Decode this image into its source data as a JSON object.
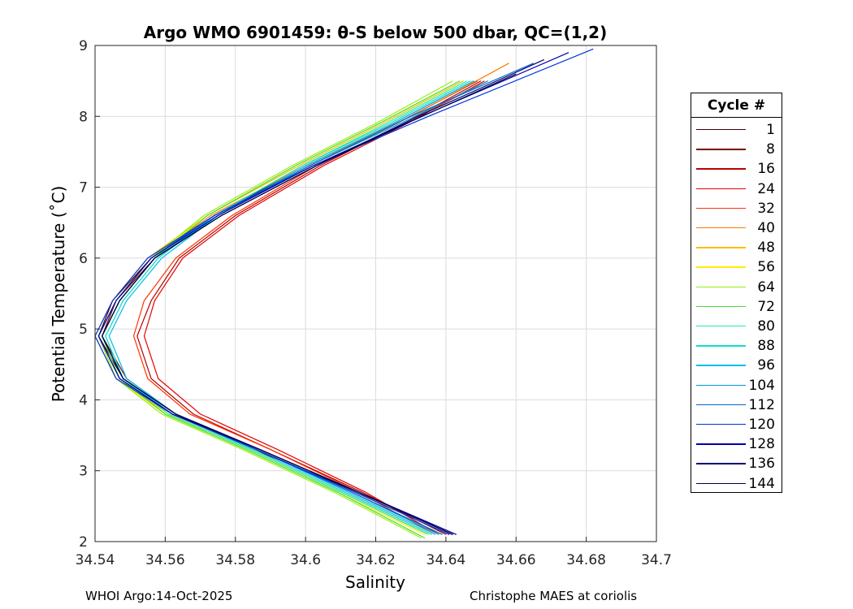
{
  "chart_data": {
    "type": "line",
    "title": "Argo WMO 6901459: θ-S below 500 dbar,  QC=(1,2)",
    "xlabel": "Salinity",
    "ylabel": "Potential Temperature (˚C)",
    "xlim": [
      34.54,
      34.7
    ],
    "ylim": [
      2,
      9
    ],
    "x_ticks": [
      "34.54",
      "34.56",
      "34.58",
      "34.6",
      "34.62",
      "34.64",
      "34.66",
      "34.68",
      "34.7"
    ],
    "y_ticks": [
      "2",
      "3",
      "4",
      "5",
      "6",
      "7",
      "8",
      "9"
    ],
    "grid": true,
    "legend_title": "Cycle #",
    "legend_position": "right",
    "series": [
      {
        "name": "1",
        "color": "#3d0000",
        "x": [
          34.642,
          34.615,
          34.585,
          34.562,
          34.548,
          34.541,
          34.545,
          34.556,
          34.574,
          34.6,
          34.625,
          34.648
        ],
        "y": [
          2.1,
          2.7,
          3.3,
          3.8,
          4.3,
          4.9,
          5.4,
          6.0,
          6.6,
          7.3,
          7.9,
          8.5
        ]
      },
      {
        "name": "8",
        "color": "#7a0000",
        "x": [
          34.641,
          34.614,
          34.586,
          34.563,
          34.549,
          34.542,
          34.546,
          34.557,
          34.575,
          34.601,
          34.626,
          34.649
        ],
        "y": [
          2.1,
          2.7,
          3.3,
          3.8,
          4.3,
          4.9,
          5.4,
          6.0,
          6.6,
          7.3,
          7.9,
          8.5
        ]
      },
      {
        "name": "16",
        "color": "#b80000",
        "x": [
          34.64,
          34.616,
          34.59,
          34.568,
          34.556,
          34.552,
          34.556,
          34.564,
          34.58,
          34.604,
          34.628,
          34.65
        ],
        "y": [
          2.1,
          2.7,
          3.3,
          3.8,
          4.3,
          4.9,
          5.4,
          6.0,
          6.6,
          7.3,
          7.9,
          8.5
        ]
      },
      {
        "name": "24",
        "color": "#e60000",
        "x": [
          34.638,
          34.617,
          34.592,
          34.57,
          34.558,
          34.554,
          34.557,
          34.565,
          34.581,
          34.605,
          34.629,
          34.651
        ],
        "y": [
          2.1,
          2.7,
          3.3,
          3.8,
          4.3,
          4.9,
          5.4,
          6.0,
          6.6,
          7.3,
          7.9,
          8.5
        ]
      },
      {
        "name": "32",
        "color": "#ff3300",
        "x": [
          34.637,
          34.615,
          34.59,
          34.567,
          34.555,
          34.551,
          34.554,
          34.563,
          34.579,
          34.603,
          34.628,
          34.652
        ],
        "y": [
          2.1,
          2.7,
          3.3,
          3.8,
          4.3,
          4.9,
          5.4,
          6.0,
          6.6,
          7.3,
          7.9,
          8.5
        ]
      },
      {
        "name": "40",
        "color": "#ff7700",
        "x": [
          34.636,
          34.611,
          34.585,
          34.562,
          34.547,
          34.541,
          34.546,
          34.556,
          34.573,
          34.6,
          34.63,
          34.658
        ],
        "y": [
          2.1,
          2.7,
          3.3,
          3.8,
          4.3,
          4.9,
          5.4,
          6.0,
          6.6,
          7.3,
          8.0,
          8.75
        ]
      },
      {
        "name": "48",
        "color": "#ffbb00",
        "x": [
          34.635,
          34.61,
          34.584,
          34.561,
          34.546,
          34.54,
          34.545,
          34.555,
          34.572,
          34.598,
          34.622,
          34.645
        ],
        "y": [
          2.1,
          2.7,
          3.3,
          3.8,
          4.3,
          4.9,
          5.4,
          6.0,
          6.6,
          7.3,
          7.9,
          8.5
        ]
      },
      {
        "name": "56",
        "color": "#ffee00",
        "x": [
          34.634,
          34.609,
          34.583,
          34.56,
          34.546,
          34.541,
          34.546,
          34.556,
          34.572,
          34.597,
          34.621,
          34.644
        ],
        "y": [
          2.1,
          2.7,
          3.3,
          3.8,
          4.3,
          4.9,
          5.4,
          6.0,
          6.6,
          7.3,
          7.9,
          8.5
        ]
      },
      {
        "name": "64",
        "color": "#99ee11",
        "x": [
          34.633,
          34.608,
          34.582,
          34.559,
          34.546,
          34.541,
          34.546,
          34.556,
          34.571,
          34.596,
          34.62,
          34.642
        ],
        "y": [
          2.05,
          2.7,
          3.3,
          3.8,
          4.3,
          4.9,
          5.4,
          6.0,
          6.6,
          7.3,
          7.9,
          8.5
        ]
      },
      {
        "name": "72",
        "color": "#44dd33",
        "x": [
          34.634,
          34.609,
          34.583,
          34.56,
          34.547,
          34.542,
          34.547,
          34.557,
          34.572,
          34.597,
          34.621,
          34.644
        ],
        "y": [
          2.05,
          2.7,
          3.3,
          3.8,
          4.3,
          4.9,
          5.4,
          6.0,
          6.6,
          7.3,
          7.9,
          8.5
        ]
      },
      {
        "name": "80",
        "color": "#22ee99",
        "x": [
          34.635,
          34.61,
          34.584,
          34.561,
          34.548,
          34.543,
          34.548,
          34.558,
          34.574,
          34.599,
          34.623,
          34.646
        ],
        "y": [
          2.1,
          2.7,
          3.3,
          3.8,
          4.3,
          4.9,
          5.4,
          6.0,
          6.6,
          7.3,
          7.9,
          8.5
        ]
      },
      {
        "name": "88",
        "color": "#11ddcc",
        "x": [
          34.636,
          34.611,
          34.585,
          34.562,
          34.548,
          34.543,
          34.548,
          34.558,
          34.574,
          34.599,
          34.624,
          34.647
        ],
        "y": [
          2.1,
          2.7,
          3.3,
          3.8,
          4.3,
          4.9,
          5.4,
          6.0,
          6.6,
          7.3,
          7.9,
          8.5
        ]
      },
      {
        "name": "96",
        "color": "#00bbee",
        "x": [
          34.637,
          34.612,
          34.586,
          34.563,
          34.549,
          34.544,
          34.549,
          34.559,
          34.575,
          34.6,
          34.625,
          34.648
        ],
        "y": [
          2.1,
          2.7,
          3.3,
          3.8,
          4.3,
          4.9,
          5.4,
          6.0,
          6.6,
          7.3,
          7.9,
          8.5
        ]
      },
      {
        "name": "104",
        "color": "#0099cc",
        "x": [
          34.638,
          34.613,
          34.586,
          34.563,
          34.548,
          34.542,
          34.547,
          34.557,
          34.575,
          34.601,
          34.627,
          34.652
        ],
        "y": [
          2.1,
          2.7,
          3.3,
          3.8,
          4.3,
          4.9,
          5.4,
          6.0,
          6.6,
          7.3,
          7.9,
          8.5
        ]
      },
      {
        "name": "112",
        "color": "#0066cc",
        "x": [
          34.639,
          34.613,
          34.586,
          34.562,
          34.547,
          34.541,
          34.546,
          34.556,
          34.574,
          34.601,
          34.63,
          34.665
        ],
        "y": [
          2.1,
          2.7,
          3.3,
          3.8,
          4.3,
          4.9,
          5.4,
          6.0,
          6.6,
          7.3,
          8.0,
          8.75
        ]
      },
      {
        "name": "120",
        "color": "#0033dd",
        "x": [
          34.641,
          34.614,
          34.586,
          34.562,
          34.546,
          34.54,
          34.545,
          34.555,
          34.574,
          34.602,
          34.635,
          34.682
        ],
        "y": [
          2.1,
          2.7,
          3.3,
          3.8,
          4.3,
          4.9,
          5.4,
          6.0,
          6.6,
          7.3,
          8.0,
          8.95
        ]
      },
      {
        "name": "128",
        "color": "#0000aa",
        "x": [
          34.643,
          34.615,
          34.587,
          34.562,
          34.547,
          34.541,
          34.546,
          34.556,
          34.575,
          34.602,
          34.633,
          34.675
        ],
        "y": [
          2.1,
          2.7,
          3.3,
          3.8,
          4.3,
          4.9,
          5.4,
          6.0,
          6.6,
          7.3,
          8.0,
          8.9
        ]
      },
      {
        "name": "136",
        "color": "#000077",
        "x": [
          34.642,
          34.615,
          34.587,
          34.563,
          34.548,
          34.542,
          34.547,
          34.557,
          34.576,
          34.603,
          34.632,
          34.668
        ],
        "y": [
          2.1,
          2.7,
          3.3,
          3.8,
          4.3,
          4.9,
          5.4,
          6.0,
          6.6,
          7.3,
          8.0,
          8.8
        ]
      },
      {
        "name": "144",
        "color": "#000044",
        "x": [
          34.642,
          34.615,
          34.587,
          34.563,
          34.548,
          34.542,
          34.547,
          34.557,
          34.576,
          34.603,
          34.631,
          34.66
        ],
        "y": [
          2.1,
          2.7,
          3.3,
          3.8,
          4.3,
          4.9,
          5.4,
          6.0,
          6.6,
          7.3,
          7.95,
          8.6
        ]
      }
    ]
  },
  "footer": {
    "left": "WHOI Argo:14-Oct-2025",
    "right": "Christophe MAES at coriolis"
  }
}
